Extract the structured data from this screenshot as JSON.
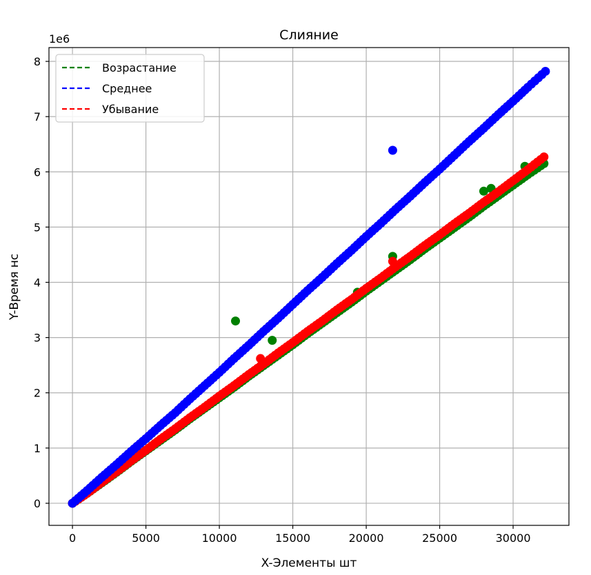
{
  "chart_data": {
    "type": "scatter",
    "title": "Слияние",
    "xlabel": "X-Элементы шт",
    "ylabel": "Y-Время нс",
    "y_offset_label": "1e6",
    "xlim": [
      -1600,
      33800
    ],
    "ylim": [
      -0.4,
      8.25
    ],
    "x_ticks": [
      0,
      5000,
      10000,
      15000,
      20000,
      25000,
      30000
    ],
    "y_ticks": [
      0,
      1,
      2,
      3,
      4,
      5,
      6,
      7,
      8
    ],
    "grid": true,
    "legend_position": "top-left",
    "series": [
      {
        "name": "Возрастание",
        "color": "#008000",
        "trend": [
          [
            0,
            0.0
          ],
          [
            32100,
            6.15
          ]
        ],
        "points": [
          [
            0,
            0.0
          ],
          [
            1000,
            0.18
          ],
          [
            2000,
            0.37
          ],
          [
            3000,
            0.56
          ],
          [
            4000,
            0.76
          ],
          [
            5000,
            0.95
          ],
          [
            6000,
            1.14
          ],
          [
            7000,
            1.33
          ],
          [
            8000,
            1.53
          ],
          [
            9000,
            1.72
          ],
          [
            10000,
            1.91
          ],
          [
            11000,
            2.1
          ],
          [
            12000,
            2.3
          ],
          [
            13000,
            2.49
          ],
          [
            14000,
            2.68
          ],
          [
            15000,
            2.87
          ],
          [
            16000,
            3.07
          ],
          [
            17000,
            3.26
          ],
          [
            18000,
            3.45
          ],
          [
            19000,
            3.64
          ],
          [
            20000,
            3.84
          ],
          [
            21000,
            4.03
          ],
          [
            22000,
            4.22
          ],
          [
            23000,
            4.41
          ],
          [
            24000,
            4.61
          ],
          [
            25000,
            4.8
          ],
          [
            26000,
            4.99
          ],
          [
            27000,
            5.18
          ],
          [
            28000,
            5.38
          ],
          [
            29000,
            5.57
          ],
          [
            30000,
            5.76
          ],
          [
            31000,
            5.95
          ],
          [
            32100,
            6.15
          ]
        ],
        "outliers": [
          [
            11100,
            3.3
          ],
          [
            13600,
            2.95
          ],
          [
            19400,
            3.82
          ],
          [
            21800,
            4.47
          ],
          [
            28000,
            5.65
          ],
          [
            28500,
            5.7
          ],
          [
            30800,
            6.1
          ]
        ]
      },
      {
        "name": "Среднее",
        "color": "#0000ff",
        "trend": [
          [
            0,
            0.0
          ],
          [
            32200,
            7.8
          ]
        ],
        "points": [
          [
            0,
            0.0
          ],
          [
            1000,
            0.23
          ],
          [
            2000,
            0.47
          ],
          [
            3000,
            0.7
          ],
          [
            4000,
            0.94
          ],
          [
            5000,
            1.17
          ],
          [
            6000,
            1.41
          ],
          [
            7000,
            1.64
          ],
          [
            8000,
            1.89
          ],
          [
            9000,
            2.13
          ],
          [
            10000,
            2.37
          ],
          [
            11000,
            2.62
          ],
          [
            12000,
            2.86
          ],
          [
            13000,
            3.11
          ],
          [
            14000,
            3.35
          ],
          [
            15000,
            3.6
          ],
          [
            16000,
            3.85
          ],
          [
            17000,
            4.09
          ],
          [
            18000,
            4.34
          ],
          [
            19000,
            4.58
          ],
          [
            20000,
            4.83
          ],
          [
            21000,
            5.07
          ],
          [
            22000,
            5.32
          ],
          [
            23000,
            5.56
          ],
          [
            24000,
            5.81
          ],
          [
            25000,
            6.05
          ],
          [
            26000,
            6.3
          ],
          [
            27000,
            6.55
          ],
          [
            28000,
            6.79
          ],
          [
            29000,
            7.04
          ],
          [
            30000,
            7.28
          ],
          [
            31000,
            7.53
          ],
          [
            32200,
            7.82
          ]
        ],
        "outliers": [
          [
            21800,
            6.39
          ]
        ]
      },
      {
        "name": "Убывание",
        "color": "#ff0000",
        "trend": [
          [
            0,
            0.0
          ],
          [
            32100,
            6.25
          ]
        ],
        "points": [
          [
            0,
            0.0
          ],
          [
            1000,
            0.18
          ],
          [
            2000,
            0.38
          ],
          [
            3000,
            0.57
          ],
          [
            4000,
            0.77
          ],
          [
            5000,
            0.96
          ],
          [
            6000,
            1.16
          ],
          [
            7000,
            1.35
          ],
          [
            8000,
            1.55
          ],
          [
            9000,
            1.74
          ],
          [
            10000,
            1.94
          ],
          [
            11000,
            2.13
          ],
          [
            12000,
            2.33
          ],
          [
            13000,
            2.52
          ],
          [
            14000,
            2.72
          ],
          [
            15000,
            2.91
          ],
          [
            16000,
            3.11
          ],
          [
            17000,
            3.3
          ],
          [
            18000,
            3.5
          ],
          [
            19000,
            3.69
          ],
          [
            20000,
            3.89
          ],
          [
            21000,
            4.08
          ],
          [
            22000,
            4.28
          ],
          [
            23000,
            4.47
          ],
          [
            24000,
            4.67
          ],
          [
            25000,
            4.86
          ],
          [
            26000,
            5.06
          ],
          [
            27000,
            5.25
          ],
          [
            28000,
            5.45
          ],
          [
            29000,
            5.64
          ],
          [
            30000,
            5.84
          ],
          [
            31000,
            6.04
          ],
          [
            32100,
            6.27
          ]
        ],
        "outliers": [
          [
            12800,
            2.62
          ],
          [
            21800,
            4.38
          ]
        ]
      }
    ]
  }
}
